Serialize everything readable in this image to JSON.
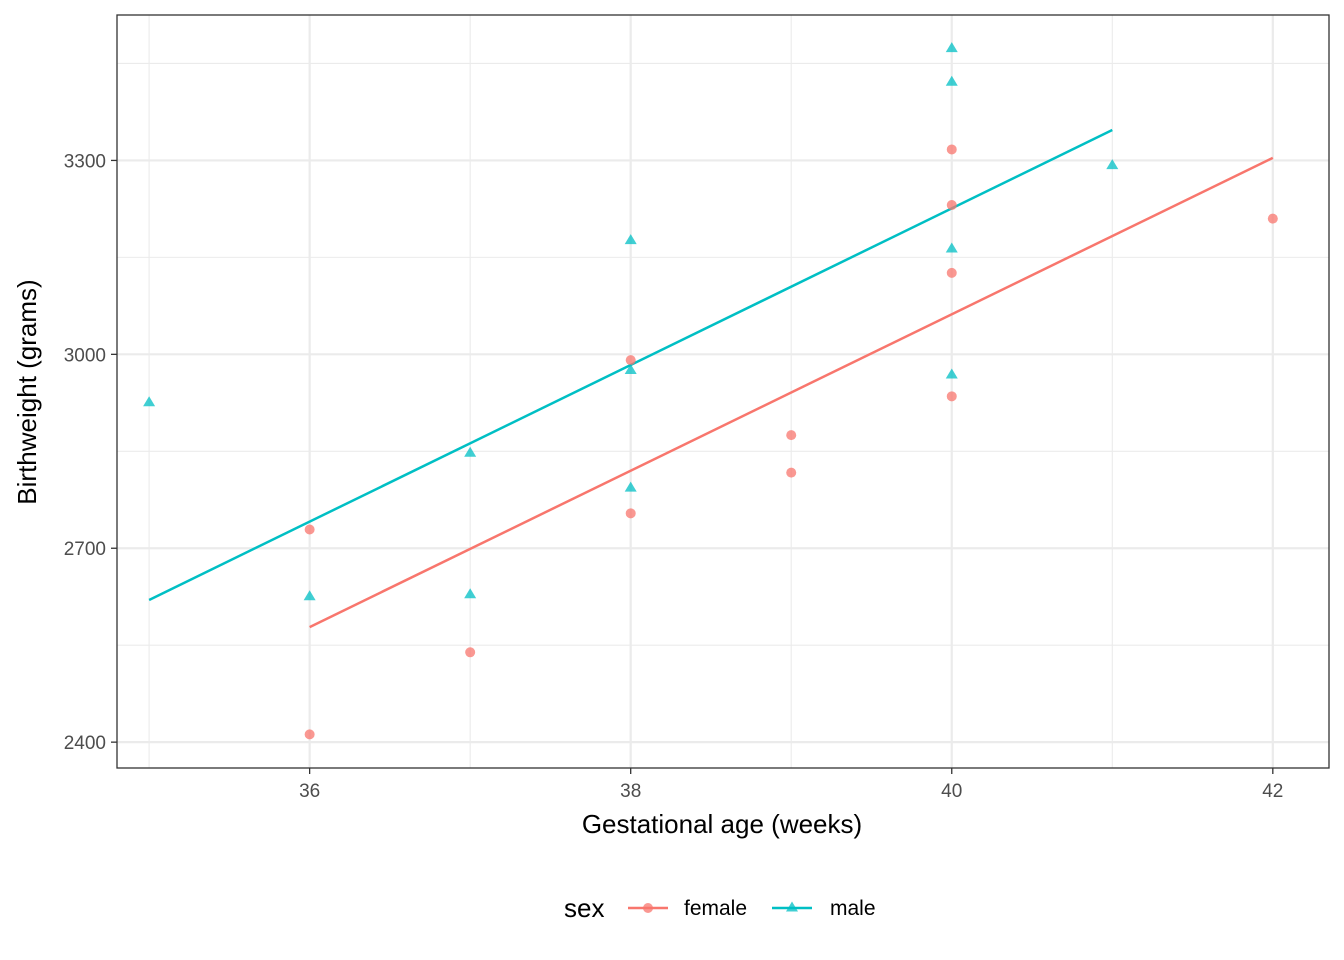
{
  "chart_data": {
    "type": "scatter",
    "xlabel": "Gestational age (weeks)",
    "ylabel": "Birthweight (grams)",
    "xlim": [
      34.8,
      42.35
    ],
    "ylim": [
      2360,
      3525
    ],
    "x_ticks": [
      36,
      38,
      40,
      42
    ],
    "y_ticks": [
      2400,
      2700,
      3000,
      3300
    ],
    "x_tick_labels": [
      "36",
      "38",
      "40",
      "42"
    ],
    "y_tick_labels": [
      "2400",
      "2700",
      "3000",
      "3300"
    ],
    "grid": true,
    "legend": {
      "title": "sex",
      "position": "bottom",
      "entries": [
        "female",
        "male"
      ]
    },
    "series": [
      {
        "name": "female",
        "color": "#F8766D",
        "marker": "circle",
        "points": [
          [
            36,
            2729
          ],
          [
            36,
            2412
          ],
          [
            37,
            2539
          ],
          [
            38,
            2991
          ],
          [
            38,
            2754
          ],
          [
            39,
            2875
          ],
          [
            39,
            2817
          ],
          [
            40,
            3317
          ],
          [
            40,
            3231
          ],
          [
            40,
            3126
          ],
          [
            40,
            2935
          ],
          [
            42,
            3210
          ]
        ],
        "fit_line": [
          [
            36,
            2578
          ],
          [
            42,
            3304
          ]
        ]
      },
      {
        "name": "male",
        "color": "#00BFC4",
        "marker": "triangle",
        "points": [
          [
            35,
            2925
          ],
          [
            36,
            2625
          ],
          [
            37,
            2847
          ],
          [
            37,
            2628
          ],
          [
            38,
            3176
          ],
          [
            38,
            2975
          ],
          [
            38,
            2793
          ],
          [
            40,
            3473
          ],
          [
            40,
            3421
          ],
          [
            40,
            3163
          ],
          [
            40,
            2968
          ],
          [
            41,
            3292
          ]
        ],
        "fit_line": [
          [
            35,
            2620
          ],
          [
            41,
            3347
          ]
        ]
      }
    ]
  }
}
